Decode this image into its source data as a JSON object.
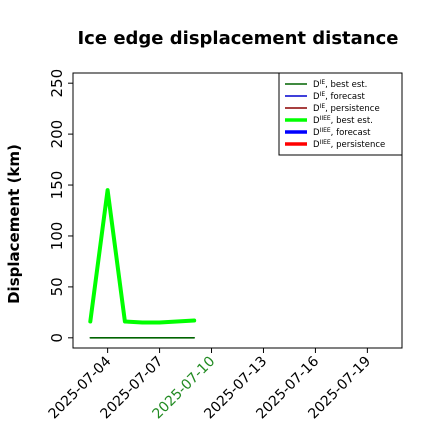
{
  "chart_data": {
    "type": "line",
    "title": "Ice edge displacement distance",
    "ylabel": "Displacement (km)",
    "xlabel": "",
    "ylim": [
      -10,
      260
    ],
    "xlim": [
      "2025-07-02",
      "2025-07-21"
    ],
    "yticks": [
      0,
      50,
      100,
      150,
      200,
      250
    ],
    "xticks": [
      "2025-07-04",
      "2025-07-07",
      "2025-07-10",
      "2025-07-13",
      "2025-07-16",
      "2025-07-19"
    ],
    "highlight_tick": "2025-07-10",
    "highlight_color": "#228b22",
    "grid": false,
    "legend_position": "top-right",
    "series": [
      {
        "name": "D^IE, best est.",
        "legend_main": "D",
        "legend_sup": "IE",
        "legend_suffix": ", best est.",
        "color": "#006400",
        "style": "thin",
        "x": [
          "2025-07-03",
          "2025-07-04",
          "2025-07-05",
          "2025-07-06",
          "2025-07-07",
          "2025-07-08",
          "2025-07-09"
        ],
        "values": [
          0,
          0,
          0,
          0,
          0,
          0,
          0
        ]
      },
      {
        "name": "D^IE, forecast",
        "legend_main": "D",
        "legend_sup": "IE",
        "legend_suffix": ", forecast",
        "color": "#0000cd",
        "style": "thin",
        "x": [],
        "values": []
      },
      {
        "name": "D^IE, persistence",
        "legend_main": "D",
        "legend_sup": "IE",
        "legend_suffix": ", persistence",
        "color": "#8b0000",
        "style": "thin",
        "x": [],
        "values": []
      },
      {
        "name": "D^IIEE, best est.",
        "legend_main": "D",
        "legend_sup": "IIEE",
        "legend_suffix": ", best est.",
        "color": "#00ff00",
        "style": "thick",
        "x": [
          "2025-07-03",
          "2025-07-04",
          "2025-07-05",
          "2025-07-06",
          "2025-07-07",
          "2025-07-08",
          "2025-07-09"
        ],
        "values": [
          16,
          145,
          16,
          15,
          15,
          16,
          17
        ]
      },
      {
        "name": "D^IIEE, forecast",
        "legend_main": "D",
        "legend_sup": "IIEE",
        "legend_suffix": ", forecast",
        "color": "#0000ff",
        "style": "thick",
        "x": [],
        "values": []
      },
      {
        "name": "D^IIEE, persistence",
        "legend_main": "D",
        "legend_sup": "IIEE",
        "legend_suffix": ", persistence",
        "color": "#ff0000",
        "style": "thick",
        "x": [],
        "values": []
      }
    ]
  }
}
